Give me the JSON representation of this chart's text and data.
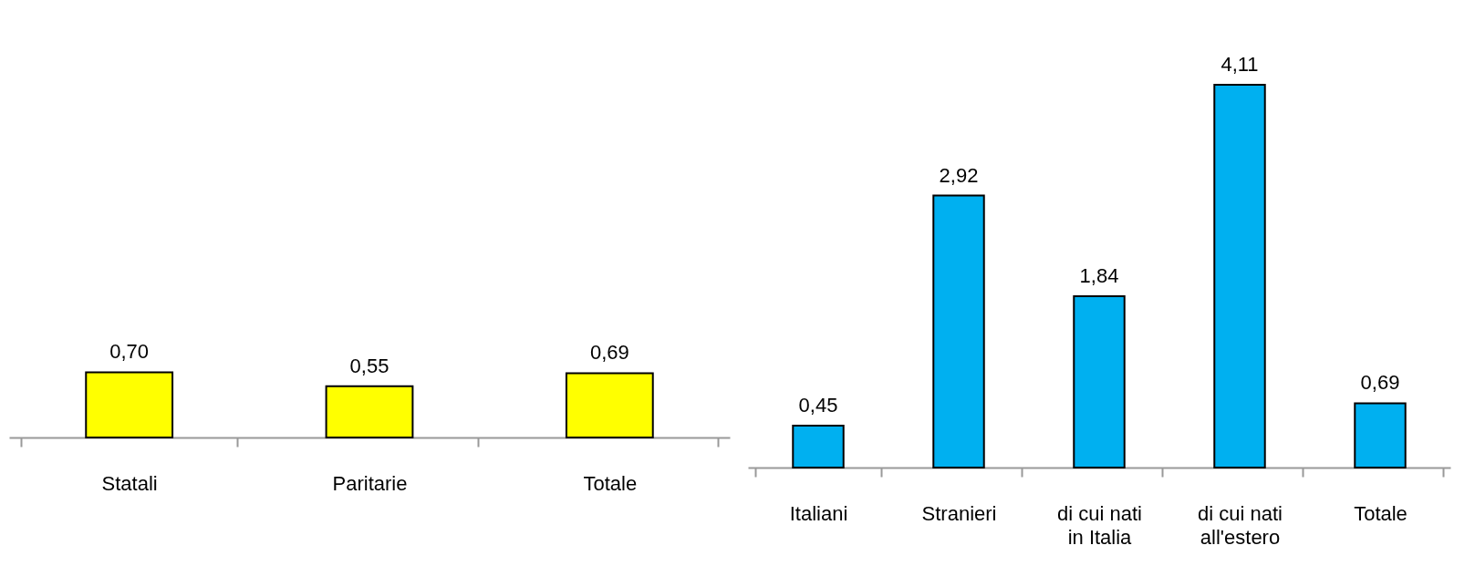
{
  "chart_data": [
    {
      "type": "bar",
      "categories": [
        "Statali",
        "Paritarie",
        "Totale"
      ],
      "values": [
        0.7,
        0.55,
        0.69
      ],
      "value_labels": [
        "0,70",
        "0,55",
        "0,69"
      ],
      "color": "#ffff00"
    },
    {
      "type": "bar",
      "categories": [
        "Italiani",
        "Stranieri",
        "di cui nati in Italia",
        "di cui nati all'estero",
        "Totale"
      ],
      "values": [
        0.45,
        2.92,
        1.84,
        4.11,
        0.69
      ],
      "value_labels": [
        "0,45",
        "2,92",
        "1,84",
        "4,11",
        "0,69"
      ],
      "color": "#00b0f0"
    }
  ]
}
